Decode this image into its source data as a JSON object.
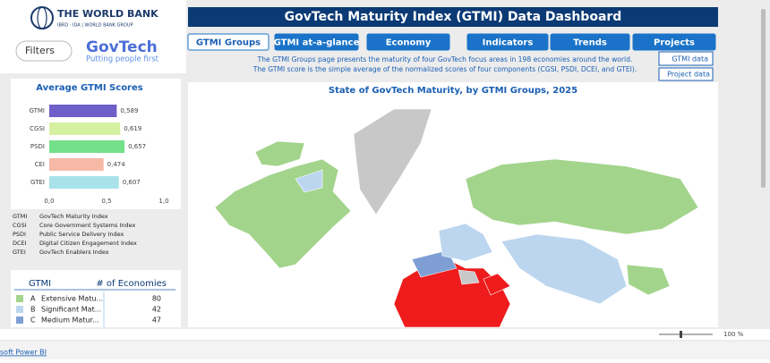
{
  "header": {
    "org": "THE WORLD BANK",
    "org_sub": "IBRD · IDA | WORLD BANK GROUP",
    "filters": "Filters",
    "brand": "GovTech",
    "tagline": "Putting people first",
    "title": "GovTech Maturity Index (GTMI) Data Dashboard"
  },
  "tabs": [
    "GTMI Groups",
    "GTMI at-a-glance",
    "Economy",
    "Indicators",
    "Trends",
    "Projects"
  ],
  "description": [
    "The GTMI Groups page presents the maturity of four GovTech focus areas in 198 economies around the world.",
    "The GTMI score is the simple average of the normalized scores of four components (CGSI, PSDI, DCEI, and GTEI)."
  ],
  "links": [
    "GTMI data",
    "Project data"
  ],
  "map": {
    "title": "State of GovTech Maturity, by GTMI Groups, 2025"
  },
  "scores_chart": {
    "type": "bar",
    "orientation": "horizontal",
    "title": "Average GTMI Scores",
    "categories": [
      "GTMI",
      "CGSI",
      "PSDI",
      "CEI",
      "GTEI"
    ],
    "values": [
      0.589,
      0.619,
      0.657,
      0.474,
      0.607
    ],
    "value_labels": [
      "0,589",
      "0,619",
      "0,657",
      "0,474",
      "0,607"
    ],
    "colors": [
      "#6f5fc8",
      "#d6f0a2",
      "#74e08a",
      "#f5b9a6",
      "#a9e2ea"
    ],
    "xlim": [
      0,
      1
    ],
    "xticks": [
      {
        "value": 0,
        "label": "0,0"
      },
      {
        "value": 0.5,
        "label": "0,5"
      },
      {
        "value": 1,
        "label": "1,0"
      }
    ]
  },
  "abbreviations": [
    {
      "code": "GTMI",
      "name": "GovTech Maturity Index"
    },
    {
      "code": "CGSI",
      "name": "Core Government Systems Index"
    },
    {
      "code": "PSDI",
      "name": "Public Service Delivery Index"
    },
    {
      "code": "DCEI",
      "name": "Digital Citizen Engagement Index"
    },
    {
      "code": "GTEI",
      "name": "GovTech Enablers Index"
    }
  ],
  "groups_table": {
    "headers": [
      "GTMI",
      "# of Economies"
    ],
    "rows": [
      {
        "letter": "A",
        "name": "Extensive Matu...",
        "count": 80,
        "color": "#a3d48c"
      },
      {
        "letter": "B",
        "name": "Significant Mat...",
        "count": 42,
        "color": "#bcd6ef"
      },
      {
        "letter": "C",
        "name": "Medium Matur...",
        "count": 47,
        "color": "#7f9fd4"
      }
    ]
  },
  "status_bar": {
    "app": "soft Power BI",
    "zoom": "100 %"
  }
}
